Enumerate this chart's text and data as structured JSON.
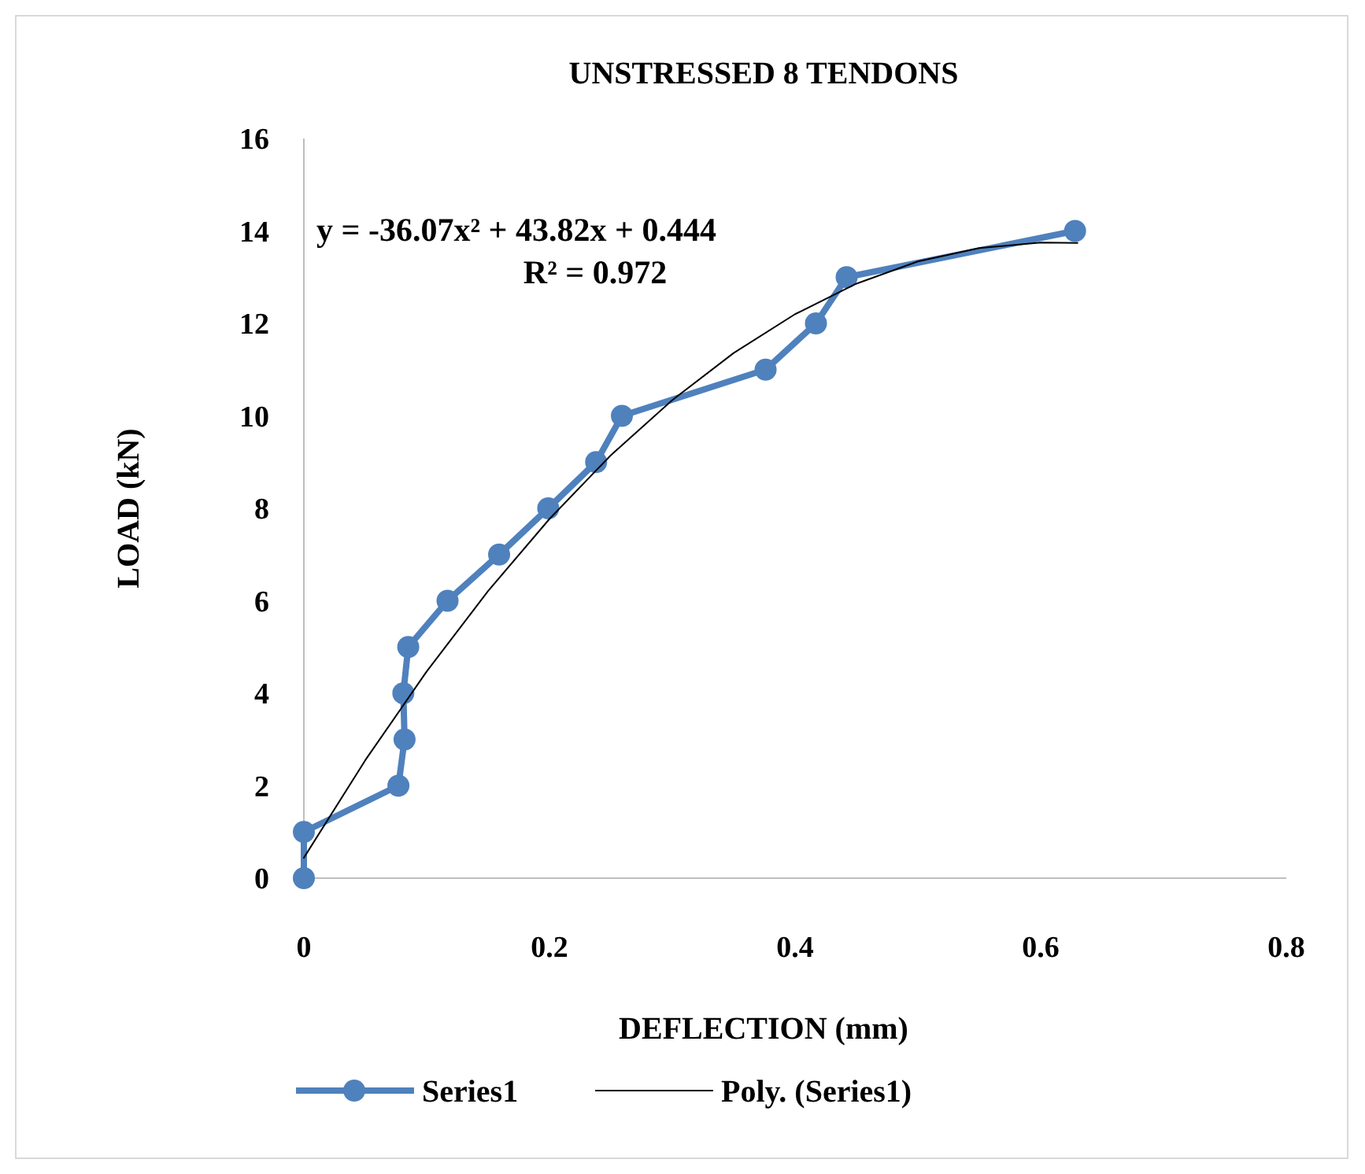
{
  "chart_data": {
    "type": "line",
    "title": "UNSTRESSED 8 TENDONS",
    "xlabel": "DEFLECTION (mm)",
    "ylabel": "LOAD (kN)",
    "xlim": [
      0,
      0.8
    ],
    "xticks": [
      0,
      0.2,
      0.4,
      0.6,
      0.8
    ],
    "ylim": [
      0,
      16
    ],
    "yticks": [
      0,
      2,
      4,
      6,
      8,
      10,
      12,
      14,
      16
    ],
    "grid": false,
    "legend": "bottom",
    "annotations": [
      "y = -36.07x² + 43.82x + 0.444",
      "R² = 0.972"
    ],
    "series": [
      {
        "name": "Series1",
        "color": "#4f81bd",
        "marker": "circle",
        "line_style": "solid",
        "x": [
          0,
          0,
          0.077,
          0.082,
          0.081,
          0.085,
          0.117,
          0.159,
          0.199,
          0.238,
          0.259,
          0.376,
          0.417,
          0.442,
          0.628
        ],
        "values": [
          0,
          1,
          2,
          3,
          4,
          5,
          6,
          7,
          8,
          9,
          10,
          11,
          12,
          13,
          14
        ]
      },
      {
        "name": "Poly. (Series1)",
        "color": "#000000",
        "marker": "none",
        "line_style": "solid",
        "x": [
          0,
          0.05,
          0.1,
          0.15,
          0.2,
          0.25,
          0.3,
          0.35,
          0.4,
          0.45,
          0.5,
          0.55,
          0.6,
          0.63
        ],
        "values": [
          0.44,
          2.55,
          4.47,
          6.21,
          7.77,
          9.15,
          10.34,
          11.36,
          12.2,
          12.86,
          13.34,
          13.63,
          13.75,
          13.74
        ]
      }
    ]
  }
}
